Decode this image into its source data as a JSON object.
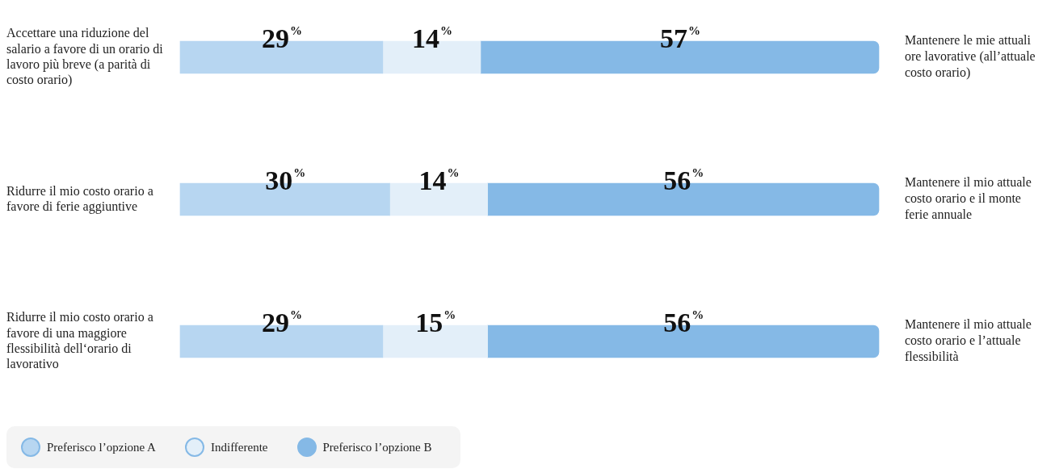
{
  "chart_data": {
    "type": "bar",
    "orientation": "horizontal",
    "stacked": true,
    "tick_labels": "y",
    "legend": "bottom left",
    "xlim": [
      0,
      100
    ],
    "categories": [
      "Accettare una riduzione del salario a favore di un orario di lavoro più breve (a parità di costo orario)",
      "Ridurre il mio costo orario a favore di ferie aggiuntive",
      "Ridurre il mio costo orario a favore di una maggiore flessibilità dell‘orario di lavorativo"
    ],
    "series": [
      {
        "name": "Preferisco l’opzione A",
        "color": "#b7d6f1",
        "values": [
          29,
          30,
          29
        ],
        "value_labels": [
          "29%",
          "30%",
          "29%"
        ]
      },
      {
        "name": "Indifferente",
        "color": "#e3eff9",
        "values": [
          14,
          14,
          15
        ],
        "value_labels": [
          "14%",
          "14%",
          "15%"
        ]
      },
      {
        "name": "Preferisco l’opzione B",
        "color": "#85b9e6",
        "values": [
          57,
          56,
          56
        ],
        "value_labels": [
          "57%",
          "56%",
          "56%"
        ]
      }
    ],
    "annotations": [
      "Mantenere le mie attuali ore lavorative (all’attuale costo orario)",
      "Mantenere il mio attuale costo orario e il monte ferie annuale",
      "Mantenere il mio attuale costo orario e l’attuale flessibilità"
    ]
  }
}
